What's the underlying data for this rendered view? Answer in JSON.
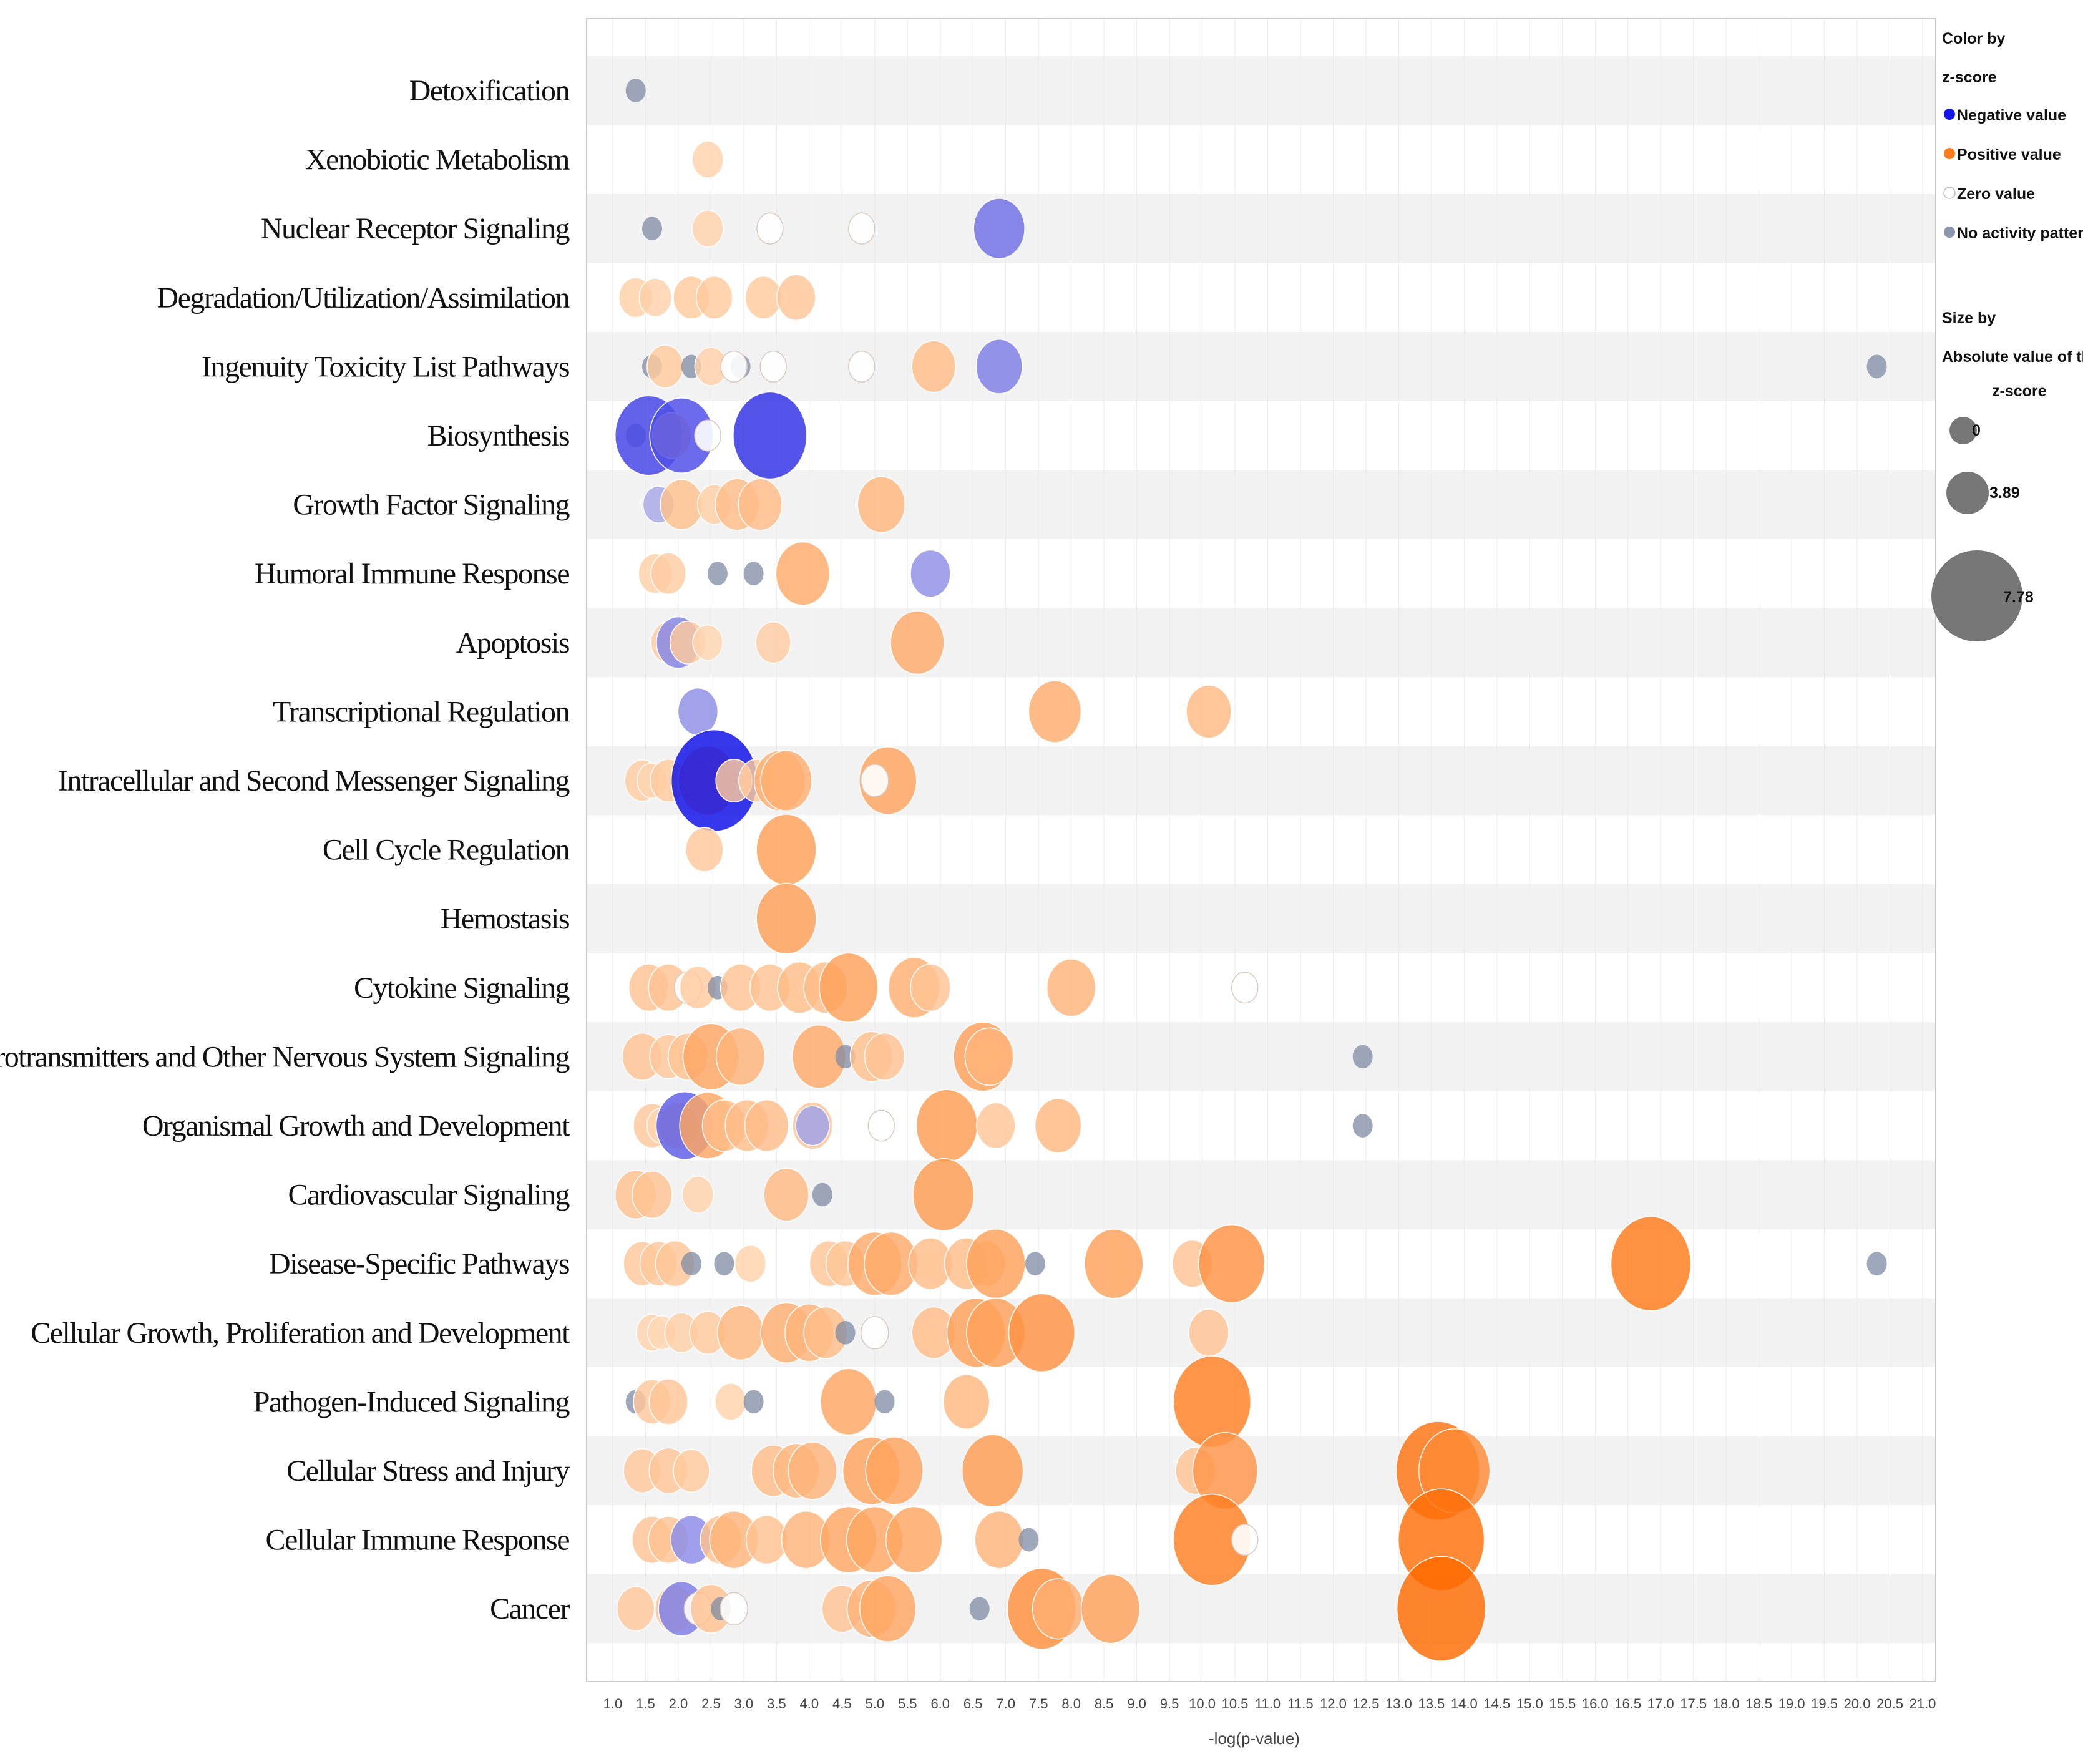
{
  "chart_data": {
    "type": "scatter",
    "subtype": "bubble",
    "xlabel": "-log(p-value)",
    "xlim": [
      0.6,
      21.2
    ],
    "x_ticks": [
      "1.0",
      "1.5",
      "2.0",
      "2.5",
      "3.0",
      "3.5",
      "4.0",
      "4.5",
      "5.0",
      "5.5",
      "6.0",
      "6.5",
      "7.0",
      "7.5",
      "8.0",
      "8.5",
      "9.0",
      "9.5",
      "10.0",
      "10.5",
      "11.0",
      "11.5",
      "12.0",
      "12.5",
      "13.0",
      "13.5",
      "14.0",
      "14.5",
      "15.0",
      "15.5",
      "16.0",
      "16.5",
      "17.0",
      "17.5",
      "18.0",
      "18.5",
      "19.0",
      "19.5",
      "20.0",
      "20.5",
      "21.0"
    ],
    "categories": [
      "Detoxification",
      "Xenobiotic Metabolism",
      "Nuclear Receptor Signaling",
      "Degradation/Utilization/Assimilation",
      "Ingenuity Toxicity List Pathways",
      "Biosynthesis",
      "Growth Factor Signaling",
      "Humoral Immune Response",
      "Apoptosis",
      "Transcriptional Regulation",
      "Intracellular and Second Messenger Signaling",
      "Cell Cycle Regulation",
      "Hemostasis",
      "Cytokine Signaling",
      "Neurotransmitters and Other Nervous System Signaling",
      "Organismal Growth and Development",
      "Cardiovascular Signaling",
      "Disease-Specific Pathways",
      "Cellular Growth, Proliferation and Development",
      "Pathogen-Induced Signaling",
      "Cellular Stress and Injury",
      "Cellular Immune Response",
      "Cancer"
    ],
    "color_scale": {
      "negative": "#1515e6",
      "positive": "#ff6a00",
      "zero": "#ffffff",
      "no_activity": "#7d8ba3"
    },
    "points": [
      {
        "c": 0,
        "x": 1.35,
        "z": null
      },
      {
        "c": 1,
        "x": 2.45,
        "z": 0.6
      },
      {
        "c": 2,
        "x": 1.6,
        "z": null
      },
      {
        "c": 2,
        "x": 2.45,
        "z": 0.6
      },
      {
        "c": 2,
        "x": 3.4,
        "z": 0.2
      },
      {
        "c": 2,
        "x": 4.8,
        "z": 0.2
      },
      {
        "c": 2,
        "x": 6.9,
        "z": -2.2
      },
      {
        "c": 3,
        "x": 1.35,
        "z": 0.8
      },
      {
        "c": 3,
        "x": 1.65,
        "z": 0.7
      },
      {
        "c": 3,
        "x": 2.2,
        "z": 1.0
      },
      {
        "c": 3,
        "x": 2.55,
        "z": 1.0
      },
      {
        "c": 3,
        "x": 3.3,
        "z": 1.0
      },
      {
        "c": 3,
        "x": 3.8,
        "z": 1.2
      },
      {
        "c": 4,
        "x": 1.6,
        "z": null
      },
      {
        "c": 4,
        "x": 1.8,
        "z": 1.0
      },
      {
        "c": 4,
        "x": 2.2,
        "z": null
      },
      {
        "c": 4,
        "x": 2.5,
        "z": 0.7
      },
      {
        "c": 4,
        "x": 2.95,
        "z": null
      },
      {
        "c": 4,
        "x": 2.85,
        "z": 0.2
      },
      {
        "c": 4,
        "x": 3.45,
        "z": 0.2
      },
      {
        "c": 4,
        "x": 4.8,
        "z": 0.2
      },
      {
        "c": 4,
        "x": 5.9,
        "z": 1.6
      },
      {
        "c": 4,
        "x": 6.9,
        "z": -1.8
      },
      {
        "c": 4,
        "x": 20.3,
        "z": null
      },
      {
        "c": 5,
        "x": 1.35,
        "z": null
      },
      {
        "c": 5,
        "x": 1.55,
        "z": -3.5
      },
      {
        "c": 5,
        "x": 1.9,
        "z": 1.2
      },
      {
        "c": 5,
        "x": 2.05,
        "z": -3.2
      },
      {
        "c": 5,
        "x": 2.45,
        "z": 0.2
      },
      {
        "c": 5,
        "x": 3.4,
        "z": -4.0
      },
      {
        "c": 6,
        "x": 1.7,
        "z": -0.6
      },
      {
        "c": 6,
        "x": 2.05,
        "z": 1.5
      },
      {
        "c": 6,
        "x": 2.55,
        "z": 0.8
      },
      {
        "c": 6,
        "x": 2.9,
        "z": 1.6
      },
      {
        "c": 6,
        "x": 3.25,
        "z": 1.6
      },
      {
        "c": 6,
        "x": 5.1,
        "z": 1.9
      },
      {
        "c": 7,
        "x": 1.65,
        "z": 0.8
      },
      {
        "c": 7,
        "x": 1.85,
        "z": 0.9
      },
      {
        "c": 7,
        "x": 2.6,
        "z": null
      },
      {
        "c": 7,
        "x": 3.15,
        "z": null
      },
      {
        "c": 7,
        "x": 3.9,
        "z": 2.4
      },
      {
        "c": 7,
        "x": 5.85,
        "z": -1.3
      },
      {
        "c": 8,
        "x": 1.85,
        "z": 0.9
      },
      {
        "c": 8,
        "x": 2.0,
        "z": -1.6
      },
      {
        "c": 8,
        "x": 2.15,
        "z": 1.0
      },
      {
        "c": 8,
        "x": 2.45,
        "z": 0.5
      },
      {
        "c": 8,
        "x": 3.45,
        "z": 0.9
      },
      {
        "c": 8,
        "x": 5.65,
        "z": 2.4
      },
      {
        "c": 9,
        "x": 2.3,
        "z": -1.3
      },
      {
        "c": 9,
        "x": 7.75,
        "z": 2.3
      },
      {
        "c": 9,
        "x": 10.1,
        "z": 1.7
      },
      {
        "c": 10,
        "x": 1.45,
        "z": 0.9
      },
      {
        "c": 10,
        "x": 1.6,
        "z": 0.5
      },
      {
        "c": 10,
        "x": 1.85,
        "z": 1.0
      },
      {
        "c": 10,
        "x": 2.25,
        "z": 0.9
      },
      {
        "c": 10,
        "x": 2.45,
        "z": 2.8
      },
      {
        "c": 10,
        "x": 2.55,
        "z": -5.0
      },
      {
        "c": 10,
        "x": 2.85,
        "z": 1.0
      },
      {
        "c": 10,
        "x": 3.2,
        "z": 1.0
      },
      {
        "c": 10,
        "x": 3.55,
        "z": 2.2
      },
      {
        "c": 10,
        "x": 3.65,
        "z": 2.2
      },
      {
        "c": 10,
        "x": 5.2,
        "z": 2.7
      },
      {
        "c": 10,
        "x": 5.0,
        "z": 0.3
      },
      {
        "c": 11,
        "x": 2.4,
        "z": 1.1
      },
      {
        "c": 11,
        "x": 3.65,
        "z": 2.9
      },
      {
        "c": 12,
        "x": 3.65,
        "z": 2.9
      },
      {
        "c": 13,
        "x": 1.55,
        "z": 1.3
      },
      {
        "c": 13,
        "x": 1.85,
        "z": 1.3
      },
      {
        "c": 13,
        "x": 2.15,
        "z": 0.3
      },
      {
        "c": 13,
        "x": 2.3,
        "z": 1.0
      },
      {
        "c": 13,
        "x": 2.6,
        "z": null
      },
      {
        "c": 13,
        "x": 2.95,
        "z": 1.3
      },
      {
        "c": 13,
        "x": 3.4,
        "z": 1.3
      },
      {
        "c": 13,
        "x": 3.85,
        "z": 1.6
      },
      {
        "c": 13,
        "x": 4.25,
        "z": 1.6
      },
      {
        "c": 13,
        "x": 4.6,
        "z": 2.8
      },
      {
        "c": 13,
        "x": 5.6,
        "z": 2.2
      },
      {
        "c": 13,
        "x": 5.85,
        "z": 1.3
      },
      {
        "c": 13,
        "x": 8.0,
        "z": 2.0
      },
      {
        "c": 13,
        "x": 10.65,
        "z": 0.2
      },
      {
        "c": 14,
        "x": 1.45,
        "z": 1.3
      },
      {
        "c": 14,
        "x": 1.85,
        "z": 1.1
      },
      {
        "c": 14,
        "x": 2.15,
        "z": 1.3
      },
      {
        "c": 14,
        "x": 2.5,
        "z": 2.6
      },
      {
        "c": 14,
        "x": 2.95,
        "z": 2.0
      },
      {
        "c": 14,
        "x": 4.15,
        "z": 2.4
      },
      {
        "c": 14,
        "x": 4.55,
        "z": null
      },
      {
        "c": 14,
        "x": 4.95,
        "z": 1.5
      },
      {
        "c": 14,
        "x": 5.15,
        "z": 1.3
      },
      {
        "c": 14,
        "x": 6.65,
        "z": 2.8
      },
      {
        "c": 14,
        "x": 6.75,
        "z": 2.0
      },
      {
        "c": 14,
        "x": 12.45,
        "z": null
      },
      {
        "c": 15,
        "x": 1.6,
        "z": 1.1
      },
      {
        "c": 15,
        "x": 1.75,
        "z": 0.5
      },
      {
        "c": 15,
        "x": 2.0,
        "z": 1.3
      },
      {
        "c": 15,
        "x": 2.1,
        "z": -2.7
      },
      {
        "c": 15,
        "x": 2.45,
        "z": 2.6
      },
      {
        "c": 15,
        "x": 2.7,
        "z": 1.6
      },
      {
        "c": 15,
        "x": 3.05,
        "z": 1.6
      },
      {
        "c": 15,
        "x": 3.35,
        "z": 1.6
      },
      {
        "c": 15,
        "x": 4.05,
        "z": 1.3
      },
      {
        "c": 15,
        "x": 4.05,
        "z": -0.8
      },
      {
        "c": 15,
        "x": 5.1,
        "z": 0.2
      },
      {
        "c": 15,
        "x": 6.1,
        "z": 3.0
      },
      {
        "c": 15,
        "x": 6.85,
        "z": 1.2
      },
      {
        "c": 15,
        "x": 7.8,
        "z": 1.8
      },
      {
        "c": 15,
        "x": 12.45,
        "z": null
      },
      {
        "c": 16,
        "x": 1.35,
        "z": 1.4
      },
      {
        "c": 16,
        "x": 1.6,
        "z": 1.3
      },
      {
        "c": 16,
        "x": 2.3,
        "z": 0.6
      },
      {
        "c": 16,
        "x": 3.65,
        "z": 1.7
      },
      {
        "c": 16,
        "x": 4.2,
        "z": null
      },
      {
        "c": 16,
        "x": 6.05,
        "z": 3.0
      },
      {
        "c": 17,
        "x": 1.45,
        "z": 1.1
      },
      {
        "c": 17,
        "x": 1.7,
        "z": 1.1
      },
      {
        "c": 17,
        "x": 1.95,
        "z": 1.2
      },
      {
        "c": 17,
        "x": 2.2,
        "z": null
      },
      {
        "c": 17,
        "x": 2.7,
        "z": null
      },
      {
        "c": 17,
        "x": 3.1,
        "z": 0.6
      },
      {
        "c": 17,
        "x": 4.3,
        "z": 1.2
      },
      {
        "c": 17,
        "x": 4.55,
        "z": 1.2
      },
      {
        "c": 17,
        "x": 5.0,
        "z": 2.4
      },
      {
        "c": 17,
        "x": 5.25,
        "z": 2.4
      },
      {
        "c": 17,
        "x": 5.85,
        "z": 1.6
      },
      {
        "c": 17,
        "x": 6.4,
        "z": 1.6
      },
      {
        "c": 17,
        "x": 6.7,
        "z": 1.2
      },
      {
        "c": 17,
        "x": 6.85,
        "z": 2.8
      },
      {
        "c": 17,
        "x": 7.45,
        "z": null
      },
      {
        "c": 17,
        "x": 8.65,
        "z": 2.8
      },
      {
        "c": 17,
        "x": 9.85,
        "z": 1.3
      },
      {
        "c": 17,
        "x": 10.45,
        "z": 3.4
      },
      {
        "c": 17,
        "x": 16.85,
        "z": 4.5
      },
      {
        "c": 17,
        "x": 20.3,
        "z": null
      },
      {
        "c": 18,
        "x": 1.6,
        "z": 0.6
      },
      {
        "c": 18,
        "x": 1.75,
        "z": 0.4
      },
      {
        "c": 18,
        "x": 2.05,
        "z": 0.8
      },
      {
        "c": 18,
        "x": 2.45,
        "z": 1.0
      },
      {
        "c": 18,
        "x": 2.95,
        "z": 1.8
      },
      {
        "c": 18,
        "x": 3.65,
        "z": 2.2
      },
      {
        "c": 18,
        "x": 4.0,
        "z": 2.0
      },
      {
        "c": 18,
        "x": 4.25,
        "z": 1.6
      },
      {
        "c": 18,
        "x": 4.55,
        "z": null
      },
      {
        "c": 18,
        "x": 5.0,
        "z": 0.3
      },
      {
        "c": 18,
        "x": 5.9,
        "z": 1.6
      },
      {
        "c": 18,
        "x": 6.55,
        "z": 2.8
      },
      {
        "c": 18,
        "x": 6.85,
        "z": 2.8
      },
      {
        "c": 18,
        "x": 7.55,
        "z": 3.4
      },
      {
        "c": 18,
        "x": 10.1,
        "z": 1.3
      },
      {
        "c": 19,
        "x": 1.35,
        "z": null
      },
      {
        "c": 19,
        "x": 1.6,
        "z": 1.1
      },
      {
        "c": 19,
        "x": 1.85,
        "z": 1.2
      },
      {
        "c": 19,
        "x": 2.8,
        "z": 0.6
      },
      {
        "c": 19,
        "x": 3.15,
        "z": null
      },
      {
        "c": 19,
        "x": 4.6,
        "z": 2.6
      },
      {
        "c": 19,
        "x": 5.15,
        "z": null
      },
      {
        "c": 19,
        "x": 6.4,
        "z": 1.8
      },
      {
        "c": 19,
        "x": 10.15,
        "z": 4.3
      },
      {
        "c": 20,
        "x": 1.45,
        "z": 1.1
      },
      {
        "c": 20,
        "x": 1.85,
        "z": 1.2
      },
      {
        "c": 20,
        "x": 2.2,
        "z": 1.0
      },
      {
        "c": 20,
        "x": 3.45,
        "z": 1.6
      },
      {
        "c": 20,
        "x": 3.8,
        "z": 1.8
      },
      {
        "c": 20,
        "x": 4.05,
        "z": 2.0
      },
      {
        "c": 20,
        "x": 4.95,
        "z": 2.7
      },
      {
        "c": 20,
        "x": 5.3,
        "z": 2.7
      },
      {
        "c": 20,
        "x": 6.8,
        "z": 3.0
      },
      {
        "c": 20,
        "x": 9.9,
        "z": 1.3
      },
      {
        "c": 20,
        "x": 10.35,
        "z": 3.3
      },
      {
        "c": 20,
        "x": 13.6,
        "z": 4.8
      },
      {
        "c": 20,
        "x": 13.85,
        "z": 3.8
      },
      {
        "c": 21,
        "x": 1.6,
        "z": 1.3
      },
      {
        "c": 21,
        "x": 1.85,
        "z": 1.3
      },
      {
        "c": 21,
        "x": 2.2,
        "z": -1.4
      },
      {
        "c": 21,
        "x": 2.65,
        "z": 1.4
      },
      {
        "c": 21,
        "x": 2.85,
        "z": 2.0
      },
      {
        "c": 21,
        "x": 3.35,
        "z": 1.4
      },
      {
        "c": 21,
        "x": 3.95,
        "z": 2.0
      },
      {
        "c": 21,
        "x": 4.6,
        "z": 2.6
      },
      {
        "c": 21,
        "x": 5.0,
        "z": 2.6
      },
      {
        "c": 21,
        "x": 5.6,
        "z": 2.6
      },
      {
        "c": 21,
        "x": 6.9,
        "z": 2.0
      },
      {
        "c": 21,
        "x": 7.35,
        "z": null
      },
      {
        "c": 21,
        "x": 10.15,
        "z": 4.3
      },
      {
        "c": 21,
        "x": 10.65,
        "z": 0.2
      },
      {
        "c": 21,
        "x": 13.65,
        "z": 5.0
      },
      {
        "c": 22,
        "x": 1.35,
        "z": 1.1
      },
      {
        "c": 22,
        "x": 1.95,
        "z": 1.3
      },
      {
        "c": 22,
        "x": 2.05,
        "z": -1.8
      },
      {
        "c": 22,
        "x": 2.3,
        "z": 0.3
      },
      {
        "c": 22,
        "x": 2.5,
        "z": 1.4
      },
      {
        "c": 22,
        "x": 2.65,
        "z": null
      },
      {
        "c": 22,
        "x": 2.85,
        "z": 0.3
      },
      {
        "c": 22,
        "x": 4.5,
        "z": 1.3
      },
      {
        "c": 22,
        "x": 4.95,
        "z": 2.0
      },
      {
        "c": 22,
        "x": 5.2,
        "z": 2.6
      },
      {
        "c": 22,
        "x": 6.6,
        "z": null
      },
      {
        "c": 22,
        "x": 7.55,
        "z": 3.6
      },
      {
        "c": 22,
        "x": 7.8,
        "z": 2.2
      },
      {
        "c": 22,
        "x": 8.6,
        "z": 2.8
      },
      {
        "c": 22,
        "x": 13.65,
        "z": 5.2
      }
    ],
    "legend": {
      "color_title_1": "Color by",
      "color_title_2": "z-score",
      "neg": "Negative value",
      "pos": "Positive value",
      "zero": "Zero value",
      "none": "No activity pattern",
      "size_title_1": "Size by",
      "size_title_2": "Absolute value of the",
      "size_title_3": "z-score",
      "s0": "0",
      "s1": "3.89",
      "s2": "7.78"
    }
  }
}
